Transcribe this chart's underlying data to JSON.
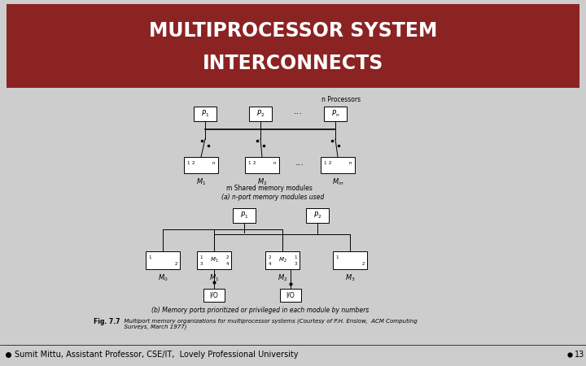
{
  "title_line1": "MULTIPROCESSOR SYSTEM",
  "title_line2": "INTERCONNECTS",
  "title_bg_color": "#8B2323",
  "title_text_color": "#FFFFFF",
  "slide_bg_color": "#CDCDCD",
  "footer_text": "Sumit Mittu, Assistant Professor, CSE/IT,  Lovely Professional University",
  "slide_number": "13",
  "fig_caption_bold": "Fig. 7.7",
  "fig_caption_rest": "  Multiport memory organizations for multiprocessor systems (Courtesy of P.H. Enslow,  ACM Computing\n  Surveys, March 1977)",
  "label_a": "(a) n-port memory modules used",
  "label_b": "(b) Memory ports prioritized or privileged in each module by numbers",
  "label_n_proc": "n Processors",
  "label_m_shared": "m Shared memory modules"
}
